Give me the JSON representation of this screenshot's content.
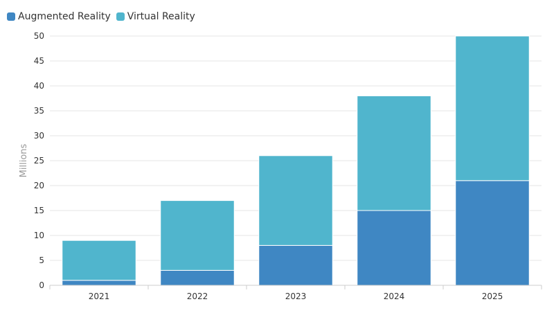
{
  "legend": {
    "items": [
      {
        "label": "Augmented Reality",
        "color": "#3f87c3"
      },
      {
        "label": "Virtual Reality",
        "color": "#50b5cd"
      }
    ]
  },
  "chart_data": {
    "type": "bar",
    "stacked": true,
    "categories": [
      "2021",
      "2022",
      "2023",
      "2024",
      "2025"
    ],
    "series": [
      {
        "name": "Augmented Reality",
        "values": [
          1,
          3,
          8,
          15,
          21
        ],
        "color": "#3f87c3"
      },
      {
        "name": "Virtual Reality",
        "values": [
          8,
          14,
          18,
          23,
          29
        ],
        "color": "#50b5cd"
      }
    ],
    "title": "",
    "xlabel": "",
    "ylabel": "Millions",
    "ylim": [
      0,
      50
    ],
    "yticks": [
      0,
      5,
      10,
      15,
      20,
      25,
      30,
      35,
      40,
      45,
      50
    ],
    "grid": true,
    "legend_position": "top-left"
  }
}
